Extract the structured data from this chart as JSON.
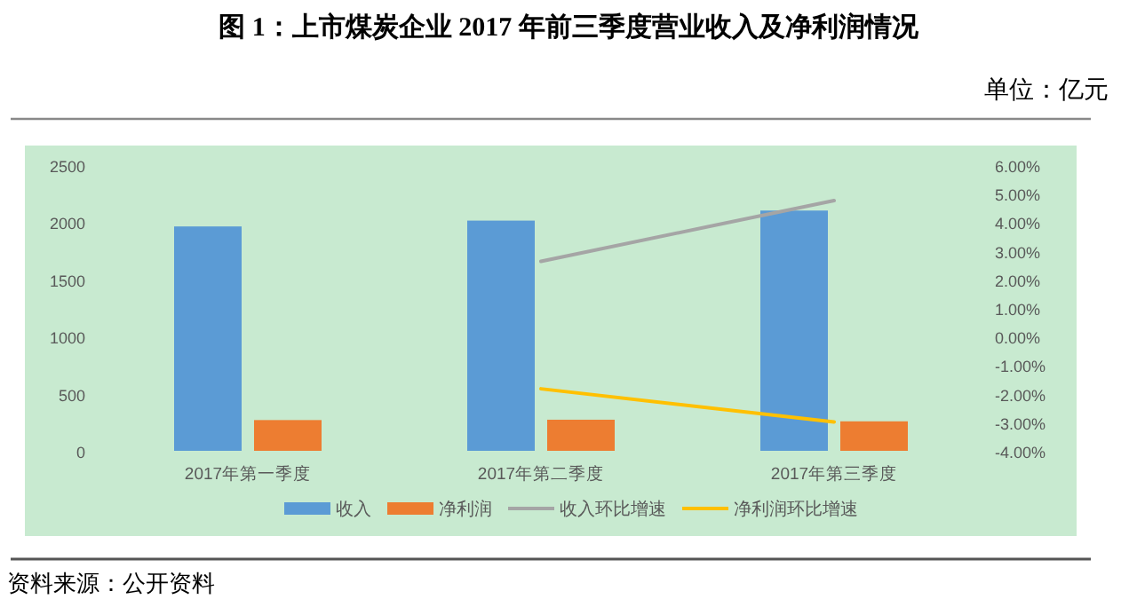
{
  "chart_data": {
    "type": "bar",
    "title": "图 1：上市煤炭企业 2017 年前三季度营业收入及净利润情况",
    "subtitle": "单位：亿元",
    "categories": [
      "2017年第一季度",
      "2017年第二季度",
      "2017年第三季度"
    ],
    "series": [
      {
        "name": "收入",
        "color": "#5b9bd5",
        "values": [
          1963,
          2014,
          2102
        ]
      },
      {
        "name": "净利润",
        "color": "#ed7d31",
        "values": [
          269,
          272,
          258
        ]
      },
      {
        "name": "收入环比增速",
        "type": "line",
        "axis": "y2",
        "color": "#a5a5a5",
        "values": [
          null,
          2.63,
          4.76
        ]
      },
      {
        "name": "净利润环比增速",
        "type": "line",
        "axis": "y2",
        "color": "#ffc000",
        "values": [
          null,
          -1.83,
          -2.99
        ]
      }
    ],
    "ylim": [
      0,
      2500
    ],
    "yticks": [
      0,
      500,
      1000,
      1500,
      2000,
      2500
    ],
    "y2lim": [
      -4,
      6
    ],
    "y2ticks": [
      {
        "value": -4,
        "label": "-4.00%"
      },
      {
        "value": -3,
        "label": "-3.00%"
      },
      {
        "value": -2,
        "label": "-2.00%"
      },
      {
        "value": -1,
        "label": "-1.00%"
      },
      {
        "value": 0,
        "label": "0.00%"
      },
      {
        "value": 1,
        "label": "1.00%"
      },
      {
        "value": 2,
        "label": "2.00%"
      },
      {
        "value": 3,
        "label": "3.00%"
      },
      {
        "value": 4,
        "label": "4.00%"
      },
      {
        "value": 5,
        "label": "5.00%"
      },
      {
        "value": 6,
        "label": "6.00%"
      }
    ],
    "legend": "bottom",
    "annotations": [
      "资料来源：公开资料"
    ]
  }
}
